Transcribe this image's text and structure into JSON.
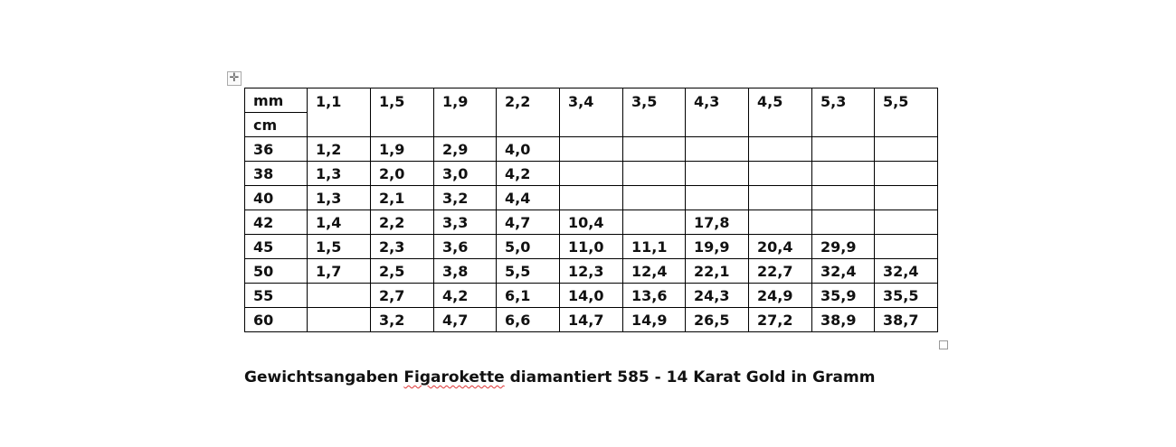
{
  "table": {
    "corner_top": "mm",
    "corner_bottom": "cm",
    "columns": [
      "1,1",
      "1,5",
      "1,9",
      "2,2",
      "3,4",
      "3,5",
      "4,3",
      "4,5",
      "5,3",
      "5,5"
    ],
    "rows": [
      {
        "cm": "36",
        "values": [
          "1,2",
          "1,9",
          "2,9",
          "4,0",
          "",
          "",
          "",
          "",
          "",
          ""
        ]
      },
      {
        "cm": "38",
        "values": [
          "1,3",
          "2,0",
          "3,0",
          "4,2",
          "",
          "",
          "",
          "",
          "",
          ""
        ]
      },
      {
        "cm": "40",
        "values": [
          "1,3",
          "2,1",
          "3,2",
          "4,4",
          "",
          "",
          "",
          "",
          "",
          ""
        ]
      },
      {
        "cm": "42",
        "values": [
          "1,4",
          "2,2",
          "3,3",
          "4,7",
          "10,4",
          "",
          "17,8",
          "",
          "",
          ""
        ]
      },
      {
        "cm": "45",
        "values": [
          "1,5",
          "2,3",
          "3,6",
          "5,0",
          "11,0",
          "11,1",
          "19,9",
          "20,4",
          "29,9",
          ""
        ]
      },
      {
        "cm": "50",
        "values": [
          "1,7",
          "2,5",
          "3,8",
          "5,5",
          "12,3",
          "12,4",
          "22,1",
          "22,7",
          "32,4",
          "32,4"
        ]
      },
      {
        "cm": "55",
        "values": [
          "",
          "2,7",
          "4,2",
          "6,1",
          "14,0",
          "13,6",
          "24,3",
          "24,9",
          "35,9",
          "35,5"
        ]
      },
      {
        "cm": "60",
        "values": [
          "",
          "3,2",
          "4,7",
          "6,6",
          "14,7",
          "14,9",
          "26,5",
          "27,2",
          "38,9",
          "38,7"
        ]
      }
    ]
  },
  "caption": {
    "before": "Gewichtsangaben ",
    "misspelled": "Figarokette",
    "after": " diamantiert 585 - 14 Karat Gold in Gramm"
  },
  "icons": {
    "move_handle": "move-arrows-icon",
    "resize_handle": "resize-square-icon"
  }
}
